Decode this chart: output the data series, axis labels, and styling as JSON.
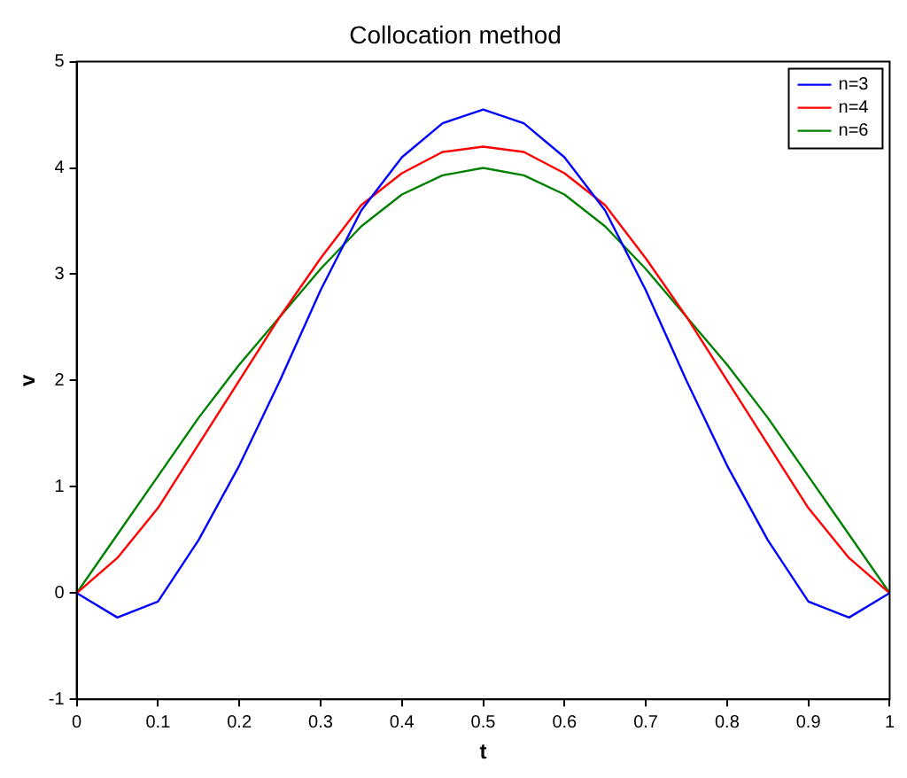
{
  "chart_data": {
    "type": "line",
    "title": "Collocation method",
    "xlabel": "t",
    "ylabel": "v",
    "xlim": [
      0,
      1
    ],
    "ylim": [
      -1,
      5
    ],
    "xticks": [
      0,
      0.1,
      0.2,
      0.3,
      0.4,
      0.5,
      0.6,
      0.7,
      0.8,
      0.9,
      1
    ],
    "yticks": [
      -1,
      0,
      1,
      2,
      3,
      4,
      5
    ],
    "grid": false,
    "legend": "top right",
    "marker": "none",
    "line_style": "solid",
    "x": [
      0,
      0.05,
      0.1,
      0.15,
      0.2,
      0.25,
      0.3,
      0.35,
      0.4,
      0.45,
      0.5,
      0.55,
      0.6,
      0.65,
      0.7,
      0.75,
      0.8,
      0.85,
      0.9,
      0.95,
      1
    ],
    "series": [
      {
        "name": "n=3",
        "color": "#0000ff",
        "values": [
          0,
          -0.23,
          -0.08,
          0.5,
          1.2,
          2.0,
          2.85,
          3.6,
          4.1,
          4.42,
          4.55,
          4.42,
          4.1,
          3.6,
          2.85,
          2.0,
          1.2,
          0.5,
          -0.08,
          -0.23,
          0
        ]
      },
      {
        "name": "n=4",
        "color": "#ff0000",
        "values": [
          0,
          0.33,
          0.8,
          1.4,
          2.0,
          2.6,
          3.15,
          3.65,
          3.95,
          4.15,
          4.2,
          4.15,
          3.95,
          3.65,
          3.15,
          2.6,
          2.0,
          1.4,
          0.8,
          0.33,
          0
        ]
      },
      {
        "name": "n=6",
        "color": "#008000",
        "values": [
          0,
          0.55,
          1.1,
          1.65,
          2.15,
          2.6,
          3.05,
          3.45,
          3.75,
          3.93,
          4.0,
          3.93,
          3.75,
          3.45,
          3.05,
          2.6,
          2.15,
          1.65,
          1.1,
          0.55,
          0
        ]
      }
    ]
  }
}
